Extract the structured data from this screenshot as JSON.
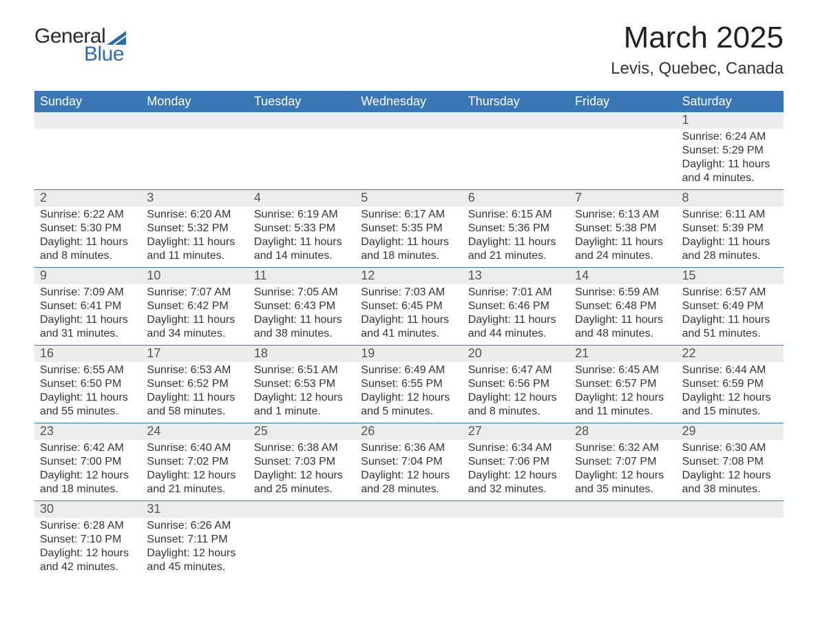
{
  "brand": {
    "top": "General",
    "bottom": "Blue",
    "top_color": "#2a2a2a",
    "bottom_color": "#2f6aa9"
  },
  "title": "March 2025",
  "location": "Levis, Quebec, Canada",
  "colors": {
    "header_bg": "#3b77b5",
    "header_text": "#ffffff",
    "daynum_bg": "#ececec",
    "divider": "#3b77b5",
    "body_text": "#333333",
    "daynum_text": "#555555",
    "page_bg": "#ffffff"
  },
  "type": "calendar-table",
  "day_headers": [
    "Sunday",
    "Monday",
    "Tuesday",
    "Wednesday",
    "Thursday",
    "Friday",
    "Saturday"
  ],
  "weeks": [
    {
      "days": [
        {
          "num": "",
          "sunrise": "",
          "sunset": "",
          "daylight1": "",
          "daylight2": ""
        },
        {
          "num": "",
          "sunrise": "",
          "sunset": "",
          "daylight1": "",
          "daylight2": ""
        },
        {
          "num": "",
          "sunrise": "",
          "sunset": "",
          "daylight1": "",
          "daylight2": ""
        },
        {
          "num": "",
          "sunrise": "",
          "sunset": "",
          "daylight1": "",
          "daylight2": ""
        },
        {
          "num": "",
          "sunrise": "",
          "sunset": "",
          "daylight1": "",
          "daylight2": ""
        },
        {
          "num": "",
          "sunrise": "",
          "sunset": "",
          "daylight1": "",
          "daylight2": ""
        },
        {
          "num": "1",
          "sunrise": "Sunrise: 6:24 AM",
          "sunset": "Sunset: 5:29 PM",
          "daylight1": "Daylight: 11 hours",
          "daylight2": "and 4 minutes."
        }
      ]
    },
    {
      "days": [
        {
          "num": "2",
          "sunrise": "Sunrise: 6:22 AM",
          "sunset": "Sunset: 5:30 PM",
          "daylight1": "Daylight: 11 hours",
          "daylight2": "and 8 minutes."
        },
        {
          "num": "3",
          "sunrise": "Sunrise: 6:20 AM",
          "sunset": "Sunset: 5:32 PM",
          "daylight1": "Daylight: 11 hours",
          "daylight2": "and 11 minutes."
        },
        {
          "num": "4",
          "sunrise": "Sunrise: 6:19 AM",
          "sunset": "Sunset: 5:33 PM",
          "daylight1": "Daylight: 11 hours",
          "daylight2": "and 14 minutes."
        },
        {
          "num": "5",
          "sunrise": "Sunrise: 6:17 AM",
          "sunset": "Sunset: 5:35 PM",
          "daylight1": "Daylight: 11 hours",
          "daylight2": "and 18 minutes."
        },
        {
          "num": "6",
          "sunrise": "Sunrise: 6:15 AM",
          "sunset": "Sunset: 5:36 PM",
          "daylight1": "Daylight: 11 hours",
          "daylight2": "and 21 minutes."
        },
        {
          "num": "7",
          "sunrise": "Sunrise: 6:13 AM",
          "sunset": "Sunset: 5:38 PM",
          "daylight1": "Daylight: 11 hours",
          "daylight2": "and 24 minutes."
        },
        {
          "num": "8",
          "sunrise": "Sunrise: 6:11 AM",
          "sunset": "Sunset: 5:39 PM",
          "daylight1": "Daylight: 11 hours",
          "daylight2": "and 28 minutes."
        }
      ]
    },
    {
      "days": [
        {
          "num": "9",
          "sunrise": "Sunrise: 7:09 AM",
          "sunset": "Sunset: 6:41 PM",
          "daylight1": "Daylight: 11 hours",
          "daylight2": "and 31 minutes."
        },
        {
          "num": "10",
          "sunrise": "Sunrise: 7:07 AM",
          "sunset": "Sunset: 6:42 PM",
          "daylight1": "Daylight: 11 hours",
          "daylight2": "and 34 minutes."
        },
        {
          "num": "11",
          "sunrise": "Sunrise: 7:05 AM",
          "sunset": "Sunset: 6:43 PM",
          "daylight1": "Daylight: 11 hours",
          "daylight2": "and 38 minutes."
        },
        {
          "num": "12",
          "sunrise": "Sunrise: 7:03 AM",
          "sunset": "Sunset: 6:45 PM",
          "daylight1": "Daylight: 11 hours",
          "daylight2": "and 41 minutes."
        },
        {
          "num": "13",
          "sunrise": "Sunrise: 7:01 AM",
          "sunset": "Sunset: 6:46 PM",
          "daylight1": "Daylight: 11 hours",
          "daylight2": "and 44 minutes."
        },
        {
          "num": "14",
          "sunrise": "Sunrise: 6:59 AM",
          "sunset": "Sunset: 6:48 PM",
          "daylight1": "Daylight: 11 hours",
          "daylight2": "and 48 minutes."
        },
        {
          "num": "15",
          "sunrise": "Sunrise: 6:57 AM",
          "sunset": "Sunset: 6:49 PM",
          "daylight1": "Daylight: 11 hours",
          "daylight2": "and 51 minutes."
        }
      ]
    },
    {
      "days": [
        {
          "num": "16",
          "sunrise": "Sunrise: 6:55 AM",
          "sunset": "Sunset: 6:50 PM",
          "daylight1": "Daylight: 11 hours",
          "daylight2": "and 55 minutes."
        },
        {
          "num": "17",
          "sunrise": "Sunrise: 6:53 AM",
          "sunset": "Sunset: 6:52 PM",
          "daylight1": "Daylight: 11 hours",
          "daylight2": "and 58 minutes."
        },
        {
          "num": "18",
          "sunrise": "Sunrise: 6:51 AM",
          "sunset": "Sunset: 6:53 PM",
          "daylight1": "Daylight: 12 hours",
          "daylight2": "and 1 minute."
        },
        {
          "num": "19",
          "sunrise": "Sunrise: 6:49 AM",
          "sunset": "Sunset: 6:55 PM",
          "daylight1": "Daylight: 12 hours",
          "daylight2": "and 5 minutes."
        },
        {
          "num": "20",
          "sunrise": "Sunrise: 6:47 AM",
          "sunset": "Sunset: 6:56 PM",
          "daylight1": "Daylight: 12 hours",
          "daylight2": "and 8 minutes."
        },
        {
          "num": "21",
          "sunrise": "Sunrise: 6:45 AM",
          "sunset": "Sunset: 6:57 PM",
          "daylight1": "Daylight: 12 hours",
          "daylight2": "and 11 minutes."
        },
        {
          "num": "22",
          "sunrise": "Sunrise: 6:44 AM",
          "sunset": "Sunset: 6:59 PM",
          "daylight1": "Daylight: 12 hours",
          "daylight2": "and 15 minutes."
        }
      ]
    },
    {
      "days": [
        {
          "num": "23",
          "sunrise": "Sunrise: 6:42 AM",
          "sunset": "Sunset: 7:00 PM",
          "daylight1": "Daylight: 12 hours",
          "daylight2": "and 18 minutes."
        },
        {
          "num": "24",
          "sunrise": "Sunrise: 6:40 AM",
          "sunset": "Sunset: 7:02 PM",
          "daylight1": "Daylight: 12 hours",
          "daylight2": "and 21 minutes."
        },
        {
          "num": "25",
          "sunrise": "Sunrise: 6:38 AM",
          "sunset": "Sunset: 7:03 PM",
          "daylight1": "Daylight: 12 hours",
          "daylight2": "and 25 minutes."
        },
        {
          "num": "26",
          "sunrise": "Sunrise: 6:36 AM",
          "sunset": "Sunset: 7:04 PM",
          "daylight1": "Daylight: 12 hours",
          "daylight2": "and 28 minutes."
        },
        {
          "num": "27",
          "sunrise": "Sunrise: 6:34 AM",
          "sunset": "Sunset: 7:06 PM",
          "daylight1": "Daylight: 12 hours",
          "daylight2": "and 32 minutes."
        },
        {
          "num": "28",
          "sunrise": "Sunrise: 6:32 AM",
          "sunset": "Sunset: 7:07 PM",
          "daylight1": "Daylight: 12 hours",
          "daylight2": "and 35 minutes."
        },
        {
          "num": "29",
          "sunrise": "Sunrise: 6:30 AM",
          "sunset": "Sunset: 7:08 PM",
          "daylight1": "Daylight: 12 hours",
          "daylight2": "and 38 minutes."
        }
      ]
    },
    {
      "days": [
        {
          "num": "30",
          "sunrise": "Sunrise: 6:28 AM",
          "sunset": "Sunset: 7:10 PM",
          "daylight1": "Daylight: 12 hours",
          "daylight2": "and 42 minutes."
        },
        {
          "num": "31",
          "sunrise": "Sunrise: 6:26 AM",
          "sunset": "Sunset: 7:11 PM",
          "daylight1": "Daylight: 12 hours",
          "daylight2": "and 45 minutes."
        },
        {
          "num": "",
          "sunrise": "",
          "sunset": "",
          "daylight1": "",
          "daylight2": ""
        },
        {
          "num": "",
          "sunrise": "",
          "sunset": "",
          "daylight1": "",
          "daylight2": ""
        },
        {
          "num": "",
          "sunrise": "",
          "sunset": "",
          "daylight1": "",
          "daylight2": ""
        },
        {
          "num": "",
          "sunrise": "",
          "sunset": "",
          "daylight1": "",
          "daylight2": ""
        },
        {
          "num": "",
          "sunrise": "",
          "sunset": "",
          "daylight1": "",
          "daylight2": ""
        }
      ]
    }
  ]
}
